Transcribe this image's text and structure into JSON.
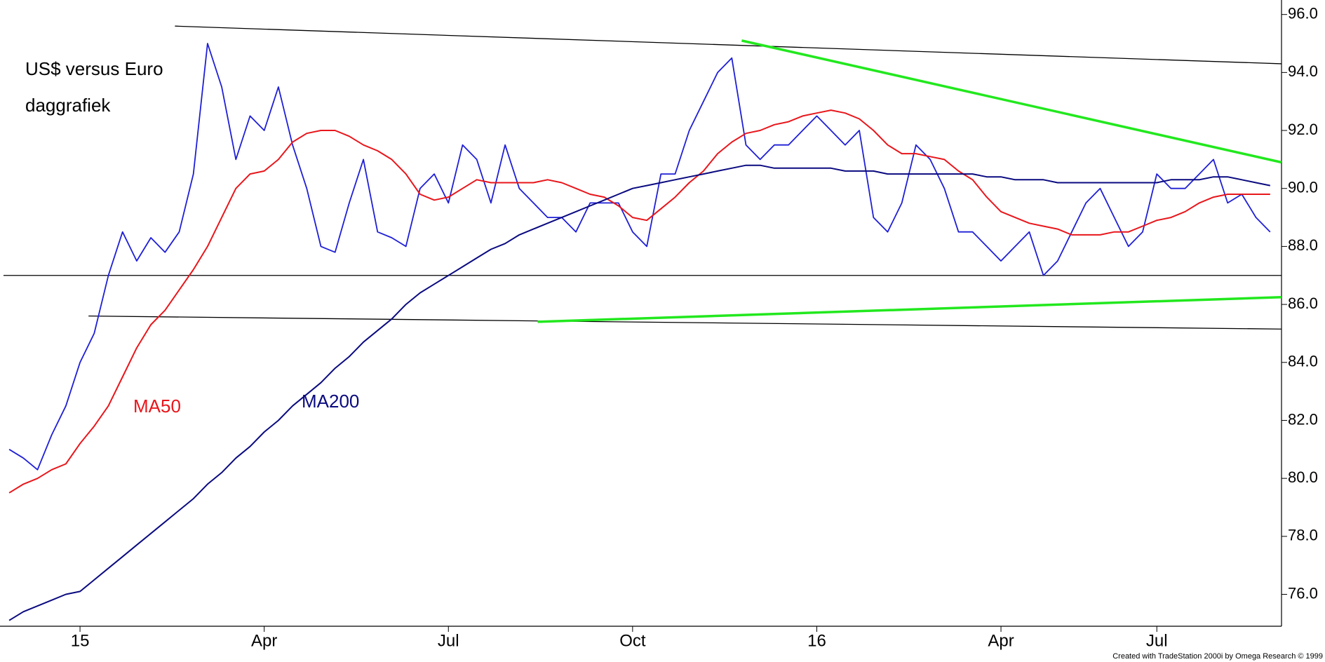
{
  "chart_data": {
    "type": "line",
    "title": "US$ versus Euro",
    "subtitle": "daggrafiek",
    "footer": "Created with TradeStation 2000i by Omega Research © 1999",
    "x": [
      -5,
      -4,
      -3,
      -2,
      -1,
      0,
      1,
      2,
      3,
      4,
      5,
      6,
      7,
      8,
      9,
      10,
      11,
      12,
      13,
      14,
      15,
      16,
      17,
      18,
      19,
      20,
      21,
      22,
      23,
      24,
      25,
      26,
      27,
      28,
      29,
      30,
      31,
      32,
      33,
      34,
      35,
      36,
      37,
      38,
      39,
      40,
      41,
      42,
      43,
      44,
      45,
      46,
      47,
      48,
      49,
      50,
      51,
      52,
      53,
      54,
      55,
      56,
      57,
      58,
      59,
      60,
      61,
      62,
      63,
      64,
      65,
      66,
      67,
      68,
      69,
      70,
      71,
      72,
      73,
      74,
      75,
      76,
      77,
      78,
      79,
      80,
      81,
      82,
      83,
      84
    ],
    "series": [
      {
        "color": "#1f1fd6",
        "values": [
          81,
          80.7,
          80.3,
          81.5,
          82.5,
          84,
          85,
          87,
          88.5,
          87.5,
          88.3,
          87.8,
          88.5,
          90.5,
          95,
          93.5,
          91,
          92.5,
          92,
          93.5,
          91.5,
          90,
          88,
          87.8,
          89.5,
          91,
          88.5,
          88.3,
          88,
          90,
          90.5,
          89.5,
          91.5,
          91,
          89.5,
          91.5,
          90,
          89.5,
          89,
          89,
          88.5,
          89.5,
          89.5,
          89.5,
          88.5,
          88,
          90.5,
          90.5,
          92,
          93,
          94,
          94.5,
          91.5,
          91,
          91.5,
          91.5,
          92,
          92.5,
          92,
          91.5,
          92,
          89,
          88.5,
          89.5,
          91.5,
          91,
          90,
          88.5,
          88.5,
          88,
          87.5,
          88,
          88.5,
          87,
          87.5,
          88.5,
          89.5,
          90,
          89,
          88,
          88.5,
          90.5,
          90,
          90,
          90.5,
          91,
          89.5,
          89.8,
          89,
          88.5
        ]
      },
      {
        "name": "MA50",
        "color": "#e8161b",
        "values": [
          79.5,
          79.8,
          80,
          80.3,
          80.5,
          81.2,
          81.8,
          82.5,
          83.5,
          84.5,
          85.3,
          85.8,
          86.5,
          87.2,
          88,
          89,
          90,
          90.5,
          90.6,
          91,
          91.6,
          91.9,
          92,
          92,
          91.8,
          91.5,
          91.3,
          91,
          90.5,
          89.8,
          89.6,
          89.7,
          90,
          90.3,
          90.2,
          90.2,
          90.2,
          90.2,
          90.3,
          90.2,
          90,
          89.8,
          89.7,
          89.4,
          89,
          88.9,
          89.3,
          89.7,
          90.2,
          90.6,
          91.2,
          91.6,
          91.9,
          92,
          92.2,
          92.3,
          92.5,
          92.6,
          92.7,
          92.6,
          92.4,
          92,
          91.5,
          91.2,
          91.2,
          91.1,
          91,
          90.6,
          90.3,
          89.7,
          89.2,
          89,
          88.8,
          88.7,
          88.6,
          88.4,
          88.4,
          88.4,
          88.5,
          88.5,
          88.7,
          88.9,
          89,
          89.2,
          89.5,
          89.7,
          89.8,
          89.8,
          89.8,
          89.8
        ]
      },
      {
        "name": "MA200",
        "color": "#0a0a80",
        "values": [
          75.1,
          75.4,
          75.6,
          75.8,
          76,
          76.1,
          76.5,
          76.9,
          77.3,
          77.7,
          78.1,
          78.5,
          78.9,
          79.3,
          79.8,
          80.2,
          80.7,
          81.1,
          81.6,
          82,
          82.5,
          82.9,
          83.3,
          83.8,
          84.2,
          84.7,
          85.1,
          85.5,
          86,
          86.4,
          86.7,
          87,
          87.3,
          87.6,
          87.9,
          88.1,
          88.4,
          88.6,
          88.8,
          89,
          89.2,
          89.4,
          89.6,
          89.8,
          90,
          90.1,
          90.2,
          90.3,
          90.4,
          90.5,
          90.6,
          90.7,
          90.8,
          90.8,
          90.7,
          90.7,
          90.7,
          90.7,
          90.7,
          90.6,
          90.6,
          90.6,
          90.5,
          90.5,
          90.5,
          90.5,
          90.5,
          90.5,
          90.5,
          90.4,
          90.4,
          90.3,
          90.3,
          90.3,
          90.2,
          90.2,
          90.2,
          90.2,
          90.2,
          90.2,
          90.2,
          90.2,
          90.3,
          90.3,
          90.3,
          90.4,
          90.4,
          90.3,
          90.2,
          90.1
        ]
      }
    ],
    "lines": [
      {
        "color": "#000000",
        "x": [
          6.7,
          84.8
        ],
        "y": [
          95.6,
          94.3
        ]
      },
      {
        "color": "#000000",
        "x": [
          0.6,
          84.8
        ],
        "y": [
          85.6,
          85.15
        ]
      },
      {
        "color": "#000000",
        "x": [
          -5.4,
          84.8
        ],
        "y": [
          87,
          87
        ]
      },
      {
        "color": "#22e81e",
        "x": [
          46.7,
          84.8
        ],
        "y": [
          95.1,
          90.9
        ]
      },
      {
        "color": "#22e81e",
        "x": [
          32.3,
          84.8
        ],
        "y": [
          85.4,
          86.25
        ]
      }
    ],
    "xlim": [
      -5.4,
      84.8
    ],
    "xticks": [
      {
        "value": 0,
        "label": "15"
      },
      {
        "value": 13,
        "label": "Apr"
      },
      {
        "value": 26,
        "label": "Jul"
      },
      {
        "value": 39,
        "label": "Oct"
      },
      {
        "value": 52,
        "label": "16"
      },
      {
        "value": 65,
        "label": "Apr"
      },
      {
        "value": 76,
        "label": "Jul"
      }
    ],
    "ylim": [
      74.9,
      96.5
    ],
    "yticks": [
      {
        "value": 76,
        "label": "76.0"
      },
      {
        "value": 78,
        "label": "78.0"
      },
      {
        "value": 80,
        "label": "80.0"
      },
      {
        "value": 82,
        "label": "82.0"
      },
      {
        "value": 84,
        "label": "84.0"
      },
      {
        "value": 86,
        "label": "86.0"
      },
      {
        "value": 88,
        "label": "88.0"
      },
      {
        "value": 90,
        "label": "90.0"
      },
      {
        "value": 92,
        "label": "92.0"
      },
      {
        "value": 94,
        "label": "94.0"
      },
      {
        "value": 96,
        "label": "96.0"
      }
    ]
  }
}
